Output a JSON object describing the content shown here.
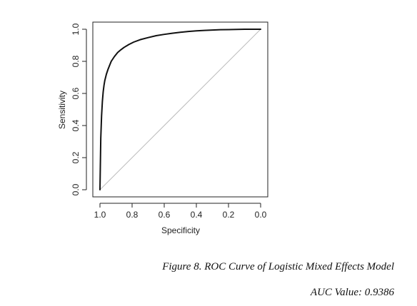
{
  "figure_caption": "Figure 8. ROC Curve of Logistic Mixed Effects Model",
  "auc_caption": "AUC Value: 0.9386",
  "chart_data": {
    "type": "line",
    "title": "",
    "xlabel": "Specificity",
    "ylabel": "Sensitivity",
    "xlim": [
      1.0,
      0.0
    ],
    "ylim": [
      0.0,
      1.0
    ],
    "x_reversed": true,
    "x_ticks": [
      1.0,
      0.8,
      0.6,
      0.4,
      0.2,
      0.0
    ],
    "x_tick_labels": [
      "1.0",
      "0.8",
      "0.6",
      "0.4",
      "0.2",
      "0.0"
    ],
    "y_ticks": [
      0.0,
      0.2,
      0.4,
      0.6,
      0.8,
      1.0
    ],
    "y_tick_labels": [
      "0.0",
      "0.2",
      "0.4",
      "0.6",
      "0.8",
      "1.0"
    ],
    "grid": false,
    "series": [
      {
        "color": "#111111",
        "x": [
          1.0,
          0.995,
          0.99,
          0.985,
          0.98,
          0.975,
          0.97,
          0.96,
          0.95,
          0.94,
          0.93,
          0.91,
          0.89,
          0.87,
          0.85,
          0.82,
          0.79,
          0.75,
          0.7,
          0.65,
          0.6,
          0.55,
          0.5,
          0.45,
          0.4,
          0.35,
          0.3,
          0.25,
          0.2,
          0.15,
          0.1,
          0.05,
          0.0
        ],
        "y": [
          0.0,
          0.32,
          0.46,
          0.55,
          0.61,
          0.65,
          0.68,
          0.72,
          0.75,
          0.775,
          0.8,
          0.83,
          0.855,
          0.872,
          0.887,
          0.905,
          0.92,
          0.935,
          0.948,
          0.96,
          0.968,
          0.975,
          0.981,
          0.986,
          0.99,
          0.993,
          0.995,
          0.997,
          0.998,
          0.999,
          1.0,
          1.0,
          1.0
        ]
      },
      {
        "color": "#bbbbbb",
        "x": [
          1.0,
          0.0
        ],
        "y": [
          0.0,
          1.0
        ]
      }
    ]
  }
}
